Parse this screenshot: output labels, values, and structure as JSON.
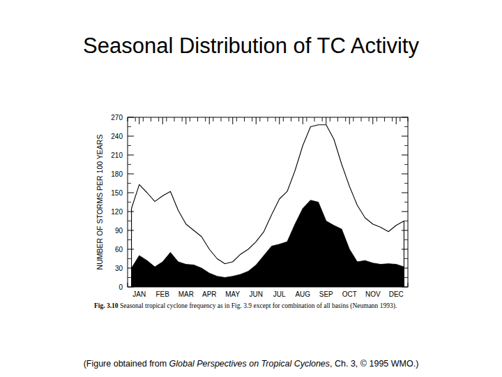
{
  "chart_data": {
    "type": "area",
    "title": "Seasonal Distribution of TC Activity",
    "y_label": "NUMBER OF STORMS PER 100 YEARS",
    "caption_label": "Fig. 3.10",
    "caption": "Seasonal tropical cyclone frequency as in Fig. 3.9 except for combination of all basins (Neumann 1993).",
    "source": [
      "(Figure obtained from ",
      "Global Perspectives on Tropical Cyclones",
      ", Ch. 3, © 1995 WMO.)"
    ],
    "categories": [
      null,
      "JAN",
      null,
      null,
      "FEB",
      null,
      null,
      "MAR",
      null,
      null,
      "APR",
      null,
      null,
      "MAY",
      null,
      null,
      "JUN",
      null,
      null,
      "JUL",
      null,
      null,
      "AUG",
      null,
      null,
      "SEP",
      null,
      null,
      "OCT",
      null,
      null,
      "NOV",
      null,
      null,
      "DEC",
      null
    ],
    "series": [
      {
        "color": "#ffffff",
        "values": [
          125,
          163,
          150,
          136,
          145,
          152,
          122,
          100,
          90,
          80,
          60,
          45,
          37,
          40,
          52,
          60,
          72,
          88,
          115,
          140,
          152,
          185,
          225,
          255,
          258,
          258,
          235,
          195,
          160,
          130,
          110,
          100,
          95,
          88,
          98,
          105
        ]
      },
      {
        "color": "#000000",
        "values": [
          30,
          50,
          42,
          32,
          40,
          55,
          40,
          36,
          35,
          30,
          22,
          17,
          15,
          17,
          20,
          25,
          35,
          50,
          65,
          68,
          72,
          100,
          125,
          138,
          135,
          105,
          98,
          92,
          60,
          40,
          42,
          38,
          36,
          37,
          36,
          32
        ]
      }
    ],
    "ylim": [
      0,
      270
    ],
    "yticks": [
      0,
      30,
      60,
      90,
      120,
      150,
      180,
      210,
      240,
      270
    ],
    "grid": false
  }
}
